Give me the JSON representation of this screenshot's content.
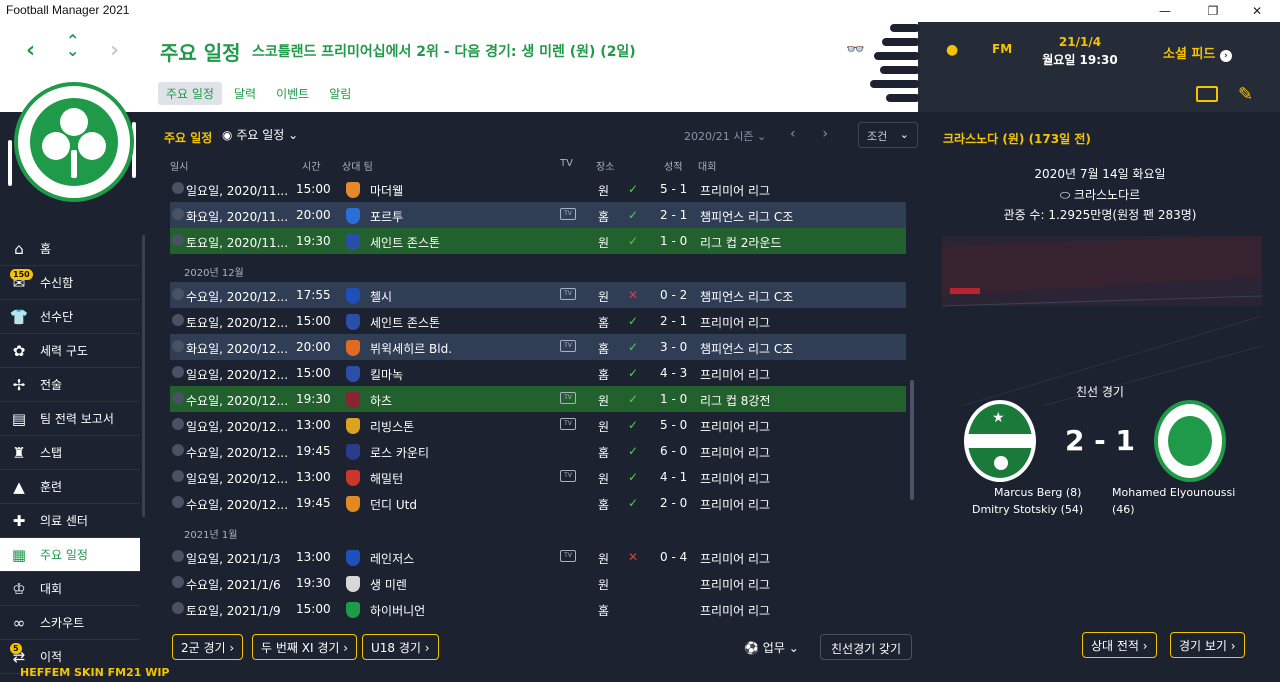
{
  "window": {
    "title": "Football Manager 2021"
  },
  "header": {
    "title": "주요 일정",
    "subtitle": "스코틀랜드 프리미어십에서 2위 - 다음 경기: 생 미렌 (원) (2일)",
    "tabs": [
      "주요 일정",
      "달력",
      "이벤트",
      "알림"
    ],
    "date_line1": "21/1/4",
    "date_line2": "월요일 19:30",
    "fm_label": "FM",
    "social_label": "소셜 피드"
  },
  "sidebar": {
    "items": [
      {
        "label": "홈",
        "icon": "home-icon"
      },
      {
        "label": "수신함",
        "icon": "mail-icon",
        "badge": "150"
      },
      {
        "label": "선수단",
        "icon": "shirt-icon"
      },
      {
        "label": "세력 구도",
        "icon": "brain-icon"
      },
      {
        "label": "전술",
        "icon": "tactics-icon"
      },
      {
        "label": "팀 전력 보고서",
        "icon": "report-icon"
      },
      {
        "label": "스탭",
        "icon": "staff-icon"
      },
      {
        "label": "훈련",
        "icon": "cone-icon"
      },
      {
        "label": "의료 센터",
        "icon": "medical-icon"
      },
      {
        "label": "주요 일정",
        "icon": "calendar-icon"
      },
      {
        "label": "대회",
        "icon": "trophy-icon"
      },
      {
        "label": "스카우트",
        "icon": "binoculars-icon"
      },
      {
        "label": "이적",
        "icon": "transfer-icon",
        "badge": "5"
      }
    ],
    "skin_label": "HEFFEM SKIN FM21 WIP"
  },
  "filters": {
    "label": "주요 일정",
    "dropdown": "주요 일정",
    "season": "2020/21 시즌",
    "conditions": "조건"
  },
  "columns": {
    "date": "일시",
    "time": "시간",
    "opponent": "상대 팀",
    "tv": "TV",
    "venue": "장소",
    "result": "성적",
    "competition": "대회"
  },
  "months": {
    "dec": "2020년 12월",
    "jan": "2021년 1월"
  },
  "fixtures": [
    {
      "date": "일요일, 2020/11...",
      "time": "15:00",
      "team": "마더웰",
      "tv": false,
      "venue": "원",
      "outcome": "W",
      "score": "5 - 1",
      "comp": "프리미어 리그",
      "style": "plain",
      "team_color": "#e5892a"
    },
    {
      "date": "화요일, 2020/11...",
      "time": "20:00",
      "team": "포르투",
      "tv": true,
      "venue": "홈",
      "outcome": "W",
      "score": "2 - 1",
      "comp": "챔피언스 리그 C조",
      "style": "blue",
      "team_color": "#2a6fd6"
    },
    {
      "date": "토요일, 2020/11...",
      "time": "19:30",
      "team": "세인트 존스톤",
      "tv": false,
      "venue": "원",
      "outcome": "W",
      "score": "1 - 0",
      "comp": "리그 컵 2라운드",
      "style": "green",
      "team_color": "#2a4fa8"
    },
    {
      "date": "수요일, 2020/12...",
      "time": "17:55",
      "team": "첼시",
      "tv": true,
      "venue": "원",
      "outcome": "L",
      "score": "0 - 2",
      "comp": "챔피언스 리그 C조",
      "style": "blue",
      "team_color": "#1f4fb8"
    },
    {
      "date": "토요일, 2020/12...",
      "time": "15:00",
      "team": "세인트 존스톤",
      "tv": false,
      "venue": "홈",
      "outcome": "W",
      "score": "2 - 1",
      "comp": "프리미어 리그",
      "style": "plain",
      "team_color": "#2a4fa8"
    },
    {
      "date": "화요일, 2020/12...",
      "time": "20:00",
      "team": "뷔윅세히르 Bld.",
      "tv": true,
      "venue": "홈",
      "outcome": "W",
      "score": "3 - 0",
      "comp": "챔피언스 리그 C조",
      "style": "blue",
      "team_color": "#e06a1f"
    },
    {
      "date": "일요일, 2020/12...",
      "time": "15:00",
      "team": "킬마녹",
      "tv": false,
      "venue": "홈",
      "outcome": "W",
      "score": "4 - 3",
      "comp": "프리미어 리그",
      "style": "plain",
      "team_color": "#2a4fa8"
    },
    {
      "date": "수요일, 2020/12...",
      "time": "19:30",
      "team": "하츠",
      "tv": true,
      "venue": "원",
      "outcome": "W",
      "score": "1 - 0",
      "comp": "리그 컵 8강전",
      "style": "green",
      "team_color": "#8a2332"
    },
    {
      "date": "일요일, 2020/12...",
      "time": "13:00",
      "team": "리빙스톤",
      "tv": true,
      "venue": "원",
      "outcome": "W",
      "score": "5 - 0",
      "comp": "프리미어 리그",
      "style": "plain",
      "team_color": "#d9a51f"
    },
    {
      "date": "수요일, 2020/12...",
      "time": "19:45",
      "team": "로스 카운티",
      "tv": false,
      "venue": "홈",
      "outcome": "W",
      "score": "6 - 0",
      "comp": "프리미어 리그",
      "style": "plain",
      "team_color": "#2a3c8a"
    },
    {
      "date": "일요일, 2020/12...",
      "time": "13:00",
      "team": "해밀턴",
      "tv": true,
      "venue": "원",
      "outcome": "W",
      "score": "4 - 1",
      "comp": "프리미어 리그",
      "style": "plain",
      "team_color": "#c8372a"
    },
    {
      "date": "수요일, 2020/12...",
      "time": "19:45",
      "team": "던디 Utd",
      "tv": false,
      "venue": "홈",
      "outcome": "W",
      "score": "2 - 0",
      "comp": "프리미어 리그",
      "style": "plain",
      "team_color": "#e08a1f"
    },
    {
      "date": "일요일, 2021/1/3",
      "time": "13:00",
      "team": "레인저스",
      "tv": true,
      "venue": "원",
      "outcome": "L",
      "score": "0 - 4",
      "comp": "프리미어 리그",
      "style": "plain",
      "team_color": "#1f4fb8"
    },
    {
      "date": "수요일, 2021/1/6",
      "time": "19:30",
      "team": "생 미렌",
      "tv": false,
      "venue": "원",
      "outcome": "",
      "score": "",
      "comp": "프리미어 리그",
      "style": "plain",
      "team_color": "#d8d8d8"
    },
    {
      "date": "토요일, 2021/1/9",
      "time": "15:00",
      "team": "하이버니언",
      "tv": false,
      "venue": "홈",
      "outcome": "",
      "score": "",
      "comp": "프리미어 리그",
      "style": "plain",
      "team_color": "#1f9a48"
    }
  ],
  "bottom_buttons": [
    "2군 경기",
    "두 번째 XI 경기",
    "U18 경기"
  ],
  "work_label": "업무",
  "friendly_button": "친선경기 갖기",
  "match_panel": {
    "title": "크라스노다 (원) (173일 전)",
    "date": "2020년 7월 14일 화요일",
    "venue": "크라스노다르",
    "attendance": "관중 수: 1.2925만명(원정 팬 283명)",
    "competition": "친선 경기",
    "score": "2 - 1",
    "home_scorers": [
      "Marcus Berg (8)",
      "Dmitry Stotskiy (54)"
    ],
    "away_scorers": [
      "Mohamed Elyounoussi",
      "(46)"
    ],
    "buttons": [
      "상대 전적",
      "경기 보기"
    ]
  },
  "colors": {
    "accent": "#f5c400",
    "brand": "#1f9a48",
    "win": "#4fd14a",
    "loss": "#e33b3b"
  }
}
